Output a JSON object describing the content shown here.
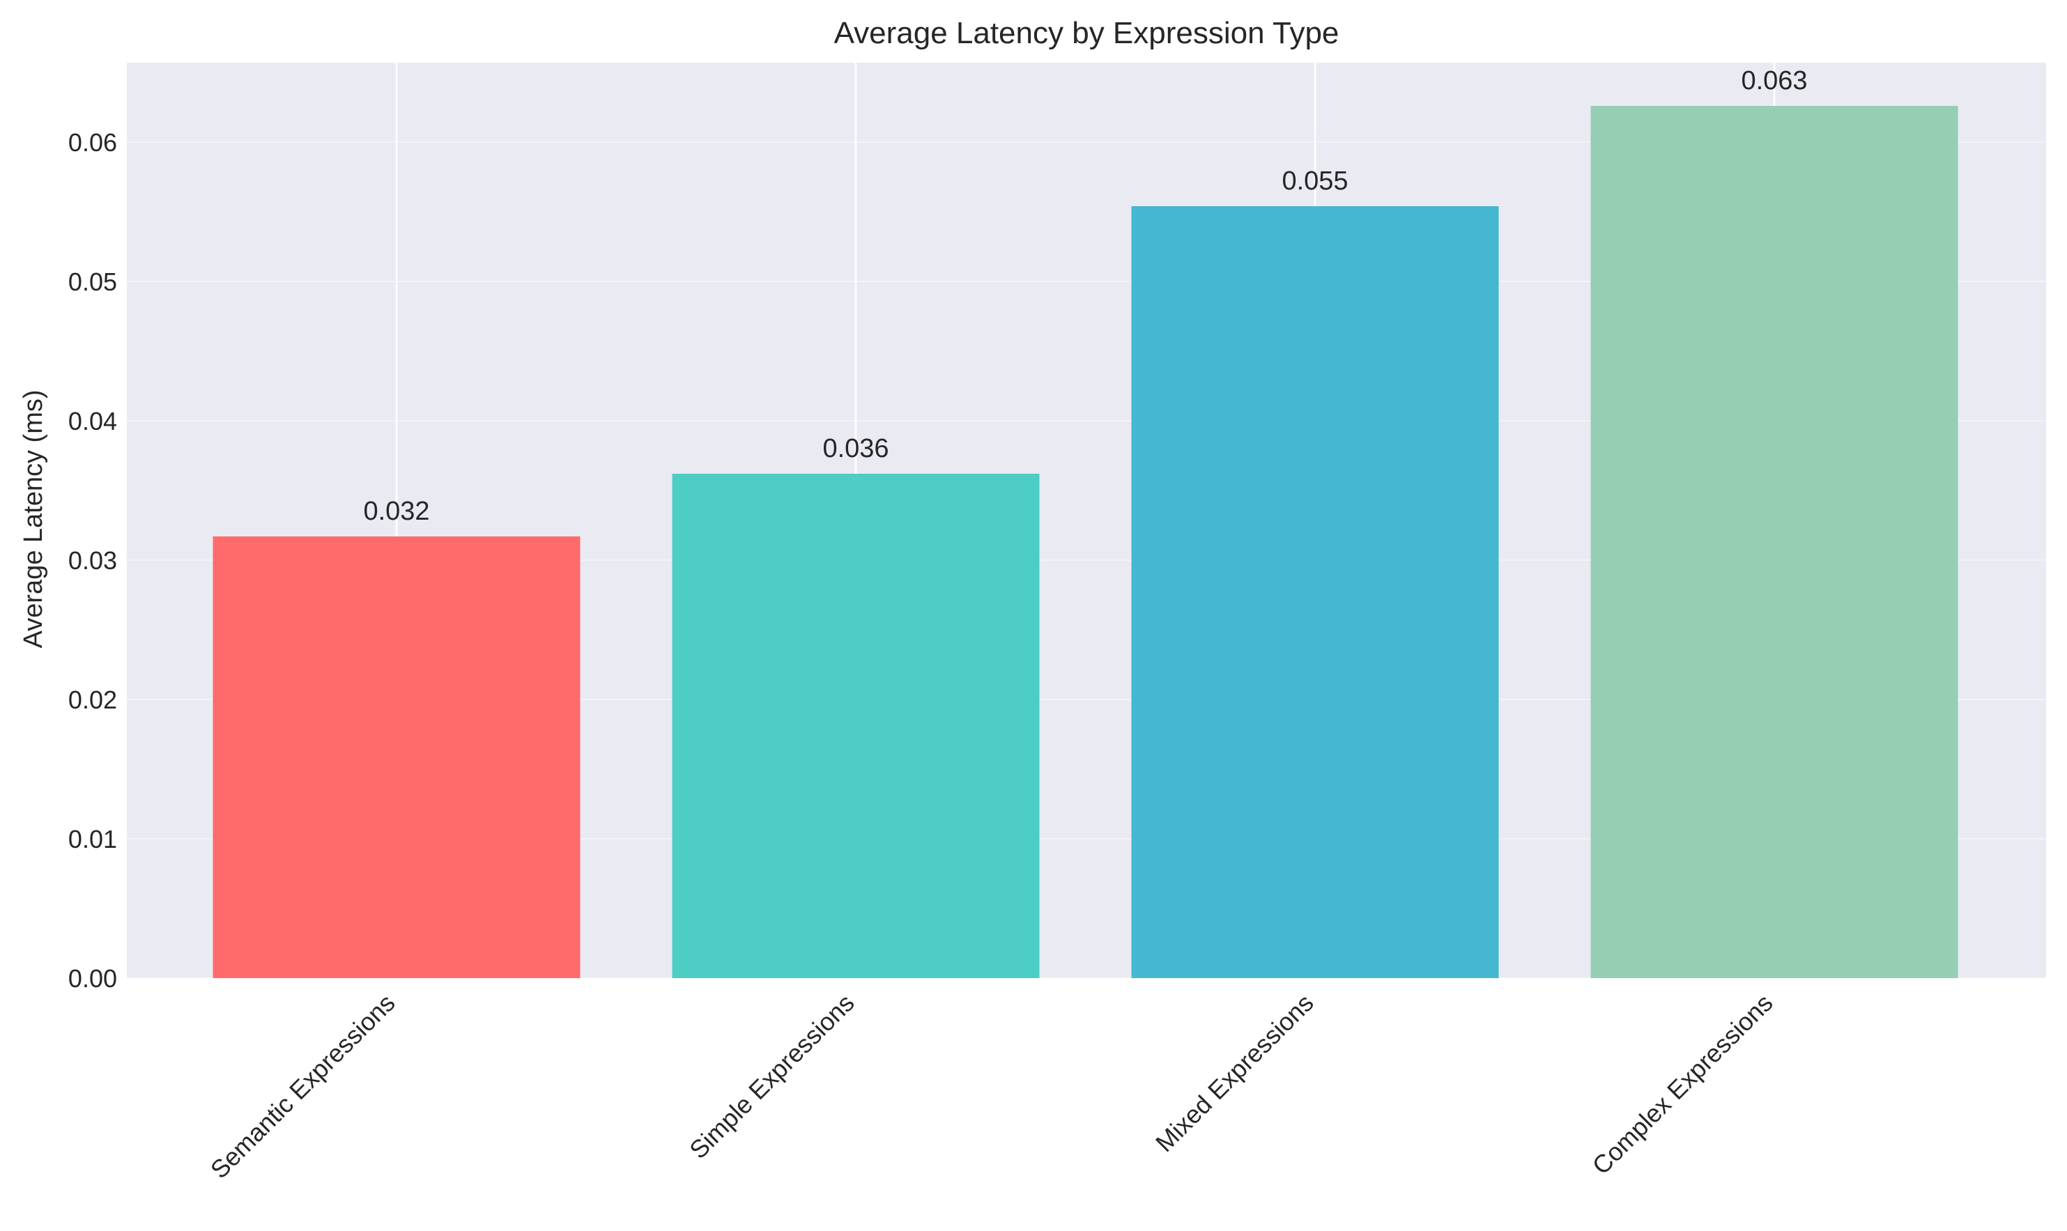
{
  "chart_data": {
    "type": "bar",
    "title": "Average Latency by Expression Type",
    "xlabel": "",
    "ylabel": "Average Latency (ms)",
    "categories": [
      "Semantic Expressions",
      "Simple Expressions",
      "Mixed Expressions",
      "Complex Expressions"
    ],
    "values": [
      0.0317,
      0.0362,
      0.0554,
      0.0626
    ],
    "value_labels": [
      "0.032",
      "0.036",
      "0.055",
      "0.063"
    ],
    "colors": [
      "#ff6b6b",
      "#4ecdc4",
      "#45b7d1",
      "#96ceb4"
    ],
    "ylim": [
      0,
      0.0657
    ],
    "yticks": [
      0.0,
      0.01,
      0.02,
      0.03,
      0.04,
      0.05,
      0.06
    ],
    "ytick_labels": [
      "0.00",
      "0.01",
      "0.02",
      "0.03",
      "0.04",
      "0.05",
      "0.06"
    ],
    "grid": true,
    "background_color": "#eaeaf2"
  }
}
